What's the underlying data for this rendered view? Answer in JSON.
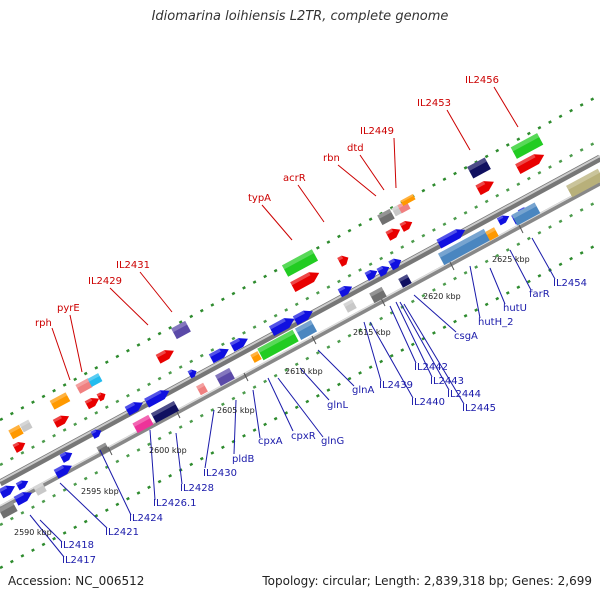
{
  "title": "Idiomarina loihiensis L2TR, complete genome",
  "footer": {
    "accession": "Accession: NC_006512",
    "summary": "Topology: circular; Length: 2,839,318 bp; Genes: 2,699"
  },
  "colors": {
    "red_label": "#cc0000",
    "blue_label": "#1a1aaa",
    "backbone": "#888888",
    "tick_green": "#2e8b2e"
  },
  "scale_labels": [
    "2590 kbp",
    "2595 kbp",
    "2600 kbp",
    "2605 kbp",
    "2610 kbp",
    "2615 kbp",
    "2620 kbp",
    "2625 kbp"
  ],
  "labels_top": [
    "rph",
    "pyrE",
    "IL2429",
    "IL2431",
    "typA",
    "acrR",
    "rbn",
    "dtd",
    "IL2449",
    "IL2453",
    "IL2456"
  ],
  "labels_bottom": [
    "IL2417",
    "IL2418",
    "IL2421",
    "IL2424",
    "IL2426.1",
    "IL2428",
    "IL2430",
    "pldB",
    "cpxA",
    "cpxR",
    "glnG",
    "glnL",
    "glnA",
    "IL2439",
    "IL2440",
    "IL2442",
    "IL2443",
    "IL2444",
    "IL2445",
    "csgA",
    "hutH_2",
    "hutU",
    "farR",
    "IL2454"
  ]
}
